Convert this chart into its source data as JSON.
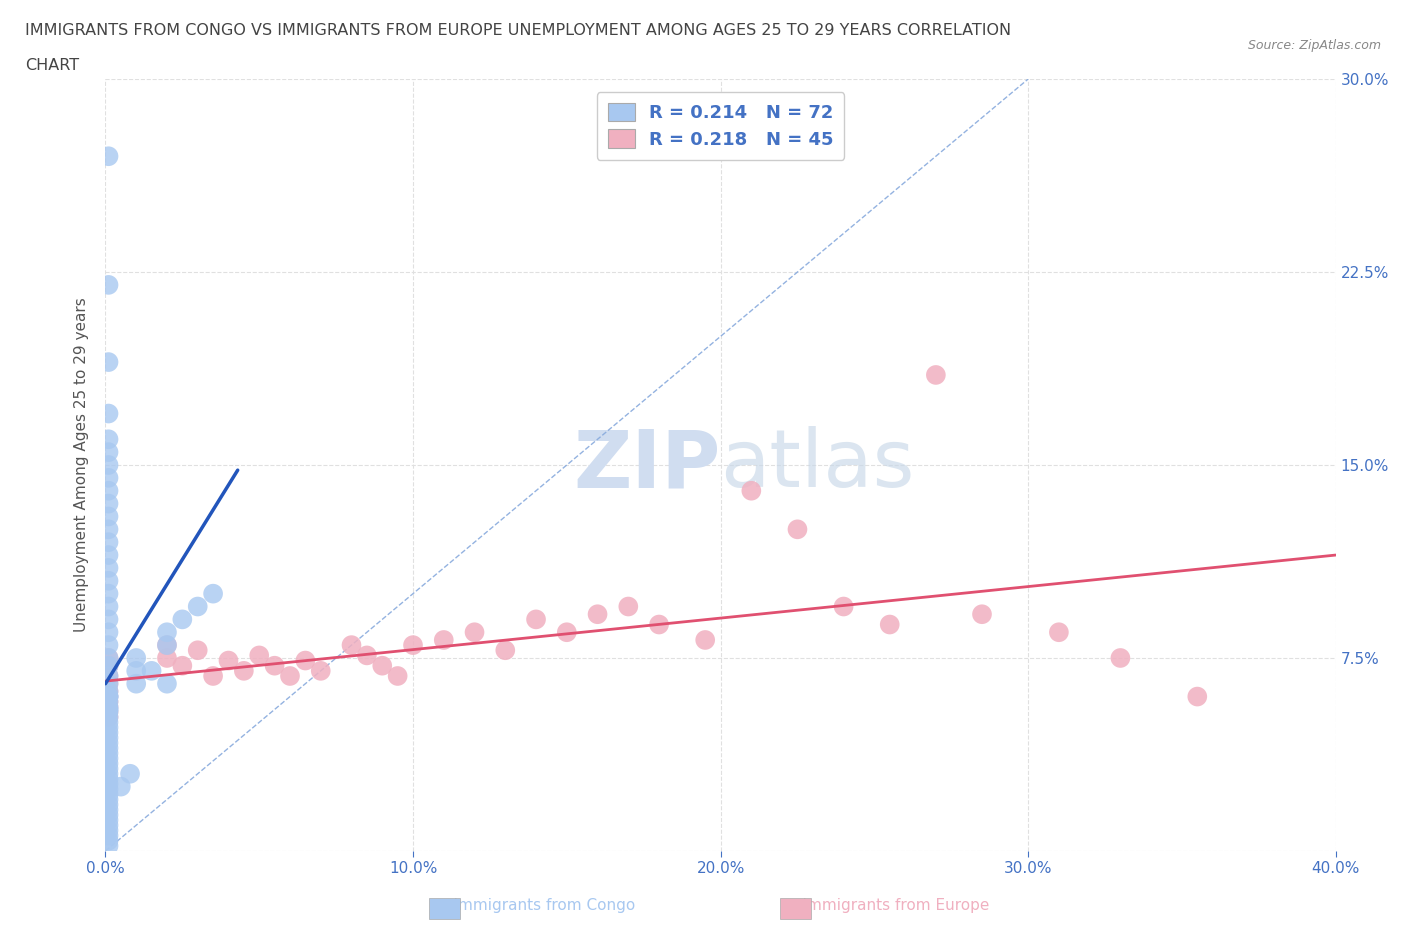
{
  "title_line1": "IMMIGRANTS FROM CONGO VS IMMIGRANTS FROM EUROPE UNEMPLOYMENT AMONG AGES 25 TO 29 YEARS CORRELATION",
  "title_line2": "CHART",
  "source_text": "Source: ZipAtlas.com",
  "ylabel": "Unemployment Among Ages 25 to 29 years",
  "xlim": [
    0.0,
    0.4
  ],
  "ylim": [
    0.0,
    0.3
  ],
  "xticks": [
    0.0,
    0.1,
    0.2,
    0.3,
    0.4
  ],
  "xticklabels": [
    "0.0%",
    "10.0%",
    "20.0%",
    "30.0%",
    "40.0%"
  ],
  "yticks": [
    0.0,
    0.075,
    0.15,
    0.225,
    0.3
  ],
  "yticklabels": [
    "",
    "7.5%",
    "15.0%",
    "22.5%",
    "30.0%"
  ],
  "congo_color": "#a8c8f0",
  "europe_color": "#f0b0c0",
  "congo_line_color": "#2255bb",
  "europe_line_color": "#e05070",
  "diag_color": "#88aadd",
  "congo_R": 0.214,
  "congo_N": 72,
  "europe_R": 0.218,
  "europe_N": 45,
  "title_color": "#444444",
  "axis_label_color": "#555555",
  "tick_color": "#4472c4",
  "watermark_color": "#d0ddf0",
  "background_color": "#ffffff",
  "grid_color": "#e0e0e0",
  "congo_x": [
    0.001,
    0.001,
    0.001,
    0.001,
    0.001,
    0.001,
    0.001,
    0.001,
    0.001,
    0.001,
    0.001,
    0.001,
    0.001,
    0.001,
    0.001,
    0.001,
    0.001,
    0.001,
    0.001,
    0.001,
    0.001,
    0.001,
    0.001,
    0.001,
    0.001,
    0.001,
    0.001,
    0.001,
    0.001,
    0.001,
    0.001,
    0.001,
    0.001,
    0.001,
    0.001,
    0.001,
    0.001,
    0.001,
    0.001,
    0.001,
    0.001,
    0.001,
    0.001,
    0.001,
    0.001,
    0.001,
    0.001,
    0.001,
    0.001,
    0.001,
    0.001,
    0.001,
    0.001,
    0.001,
    0.001,
    0.001,
    0.001,
    0.001,
    0.001,
    0.001,
    0.01,
    0.01,
    0.01,
    0.02,
    0.02,
    0.025,
    0.03,
    0.035,
    0.02,
    0.015,
    0.005,
    0.008
  ],
  "congo_y": [
    0.27,
    0.22,
    0.19,
    0.17,
    0.16,
    0.155,
    0.15,
    0.145,
    0.14,
    0.135,
    0.13,
    0.125,
    0.12,
    0.115,
    0.11,
    0.105,
    0.1,
    0.095,
    0.09,
    0.085,
    0.08,
    0.075,
    0.072,
    0.068,
    0.065,
    0.062,
    0.06,
    0.058,
    0.056,
    0.054,
    0.052,
    0.05,
    0.048,
    0.046,
    0.044,
    0.042,
    0.04,
    0.038,
    0.036,
    0.034,
    0.032,
    0.03,
    0.028,
    0.026,
    0.024,
    0.022,
    0.02,
    0.018,
    0.016,
    0.014,
    0.012,
    0.01,
    0.008,
    0.006,
    0.004,
    0.002,
    0.055,
    0.055,
    0.06,
    0.06,
    0.065,
    0.07,
    0.075,
    0.08,
    0.085,
    0.09,
    0.095,
    0.1,
    0.065,
    0.07,
    0.025,
    0.03
  ],
  "europe_x": [
    0.001,
    0.001,
    0.001,
    0.001,
    0.001,
    0.001,
    0.001,
    0.001,
    0.001,
    0.001,
    0.02,
    0.02,
    0.025,
    0.03,
    0.035,
    0.04,
    0.045,
    0.05,
    0.055,
    0.06,
    0.065,
    0.07,
    0.08,
    0.085,
    0.09,
    0.095,
    0.1,
    0.11,
    0.12,
    0.13,
    0.14,
    0.15,
    0.16,
    0.17,
    0.18,
    0.195,
    0.21,
    0.225,
    0.24,
    0.255,
    0.27,
    0.285,
    0.31,
    0.33,
    0.355
  ],
  "europe_y": [
    0.075,
    0.072,
    0.068,
    0.065,
    0.062,
    0.06,
    0.058,
    0.056,
    0.054,
    0.052,
    0.075,
    0.08,
    0.072,
    0.078,
    0.068,
    0.074,
    0.07,
    0.076,
    0.072,
    0.068,
    0.074,
    0.07,
    0.08,
    0.076,
    0.072,
    0.068,
    0.08,
    0.082,
    0.085,
    0.078,
    0.09,
    0.085,
    0.092,
    0.095,
    0.088,
    0.082,
    0.14,
    0.125,
    0.095,
    0.088,
    0.185,
    0.092,
    0.085,
    0.075,
    0.06
  ],
  "congo_line_x": [
    0.0,
    0.043
  ],
  "congo_line_y": [
    0.065,
    0.148
  ],
  "europe_line_x": [
    0.0,
    0.4
  ],
  "europe_line_y": [
    0.066,
    0.115
  ],
  "diag_line_x": [
    0.0,
    0.3
  ],
  "diag_line_y": [
    0.0,
    0.3
  ]
}
